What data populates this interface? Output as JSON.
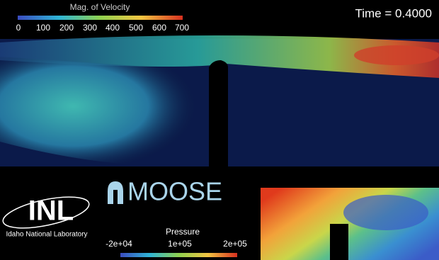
{
  "velocity_colorbar": {
    "title": "Mag. of Velocity",
    "ticks": [
      "0",
      "100",
      "200",
      "300",
      "400",
      "500",
      "600",
      "700"
    ]
  },
  "time_label": "Time = 0.4000",
  "moose_logo": "MOOSE",
  "inl_logo": {
    "abbr": "INL",
    "name": "Idaho National Laboratory"
  },
  "pressure_colorbar": {
    "title": "Pressure",
    "ticks": [
      "-2e+04",
      "1e+05",
      "2e+05"
    ]
  }
}
